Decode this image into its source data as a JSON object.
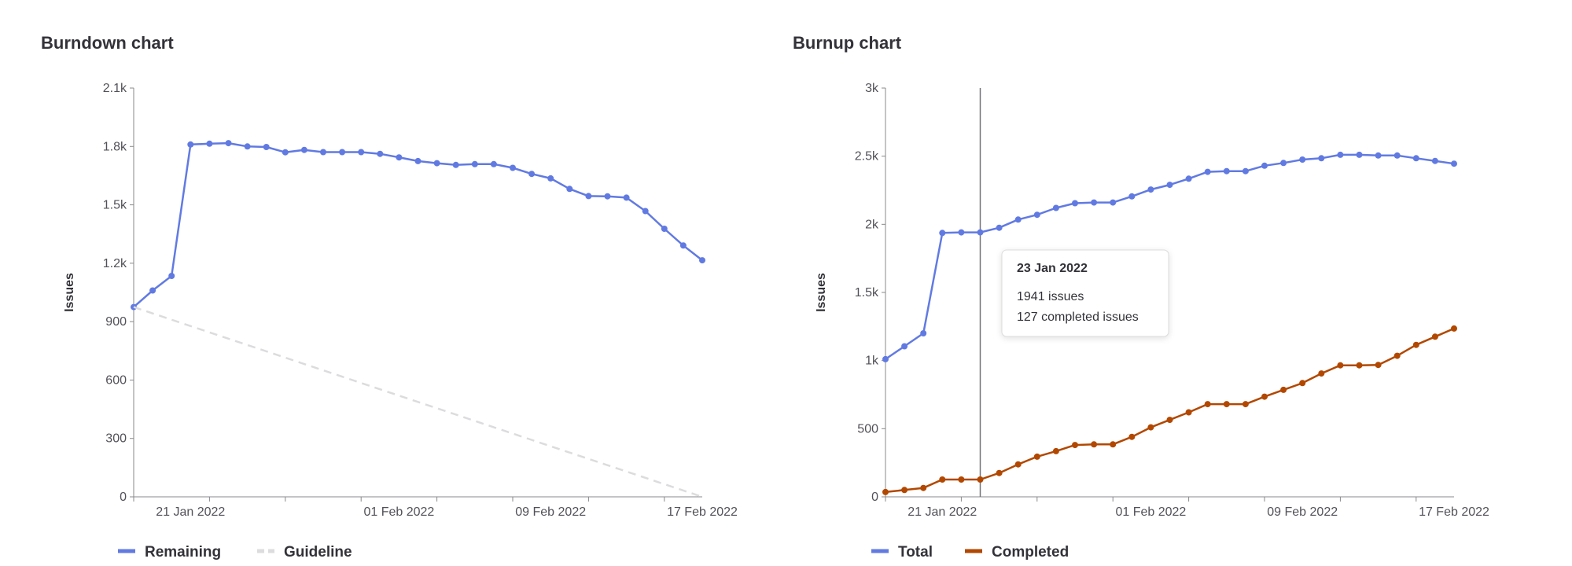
{
  "colors": {
    "total": "#617ae2",
    "completed": "#b24800",
    "guideline": "#dcdcde",
    "axis": "#89888d",
    "crosshair": "#737278"
  },
  "chart_data": [
    {
      "type": "line",
      "title": "Burndown chart",
      "ylabel": "Issues",
      "xlabel": "",
      "x_ticks": [
        "21 Jan 2022",
        "01 Feb 2022",
        "09 Feb 2022",
        "17 Feb 2022"
      ],
      "y_ticks": [
        "0",
        "300",
        "600",
        "900",
        "1.2k",
        "1.5k",
        "1.8k",
        "2.1k"
      ],
      "ylim": [
        0,
        2100
      ],
      "x_range": [
        "18 Jan 2022",
        "17 Feb 2022"
      ],
      "grid": false,
      "legend": {
        "placement": "bottom-left",
        "entries": [
          "Remaining",
          "Guideline"
        ]
      },
      "series": [
        {
          "name": "Remaining",
          "x": [
            "18 Jan 2022",
            "19 Jan 2022",
            "20 Jan 2022",
            "21 Jan 2022",
            "22 Jan 2022",
            "23 Jan 2022",
            "24 Jan 2022",
            "25 Jan 2022",
            "26 Jan 2022",
            "27 Jan 2022",
            "28 Jan 2022",
            "29 Jan 2022",
            "30 Jan 2022",
            "31 Jan 2022",
            "01 Feb 2022",
            "02 Feb 2022",
            "03 Feb 2022",
            "04 Feb 2022",
            "05 Feb 2022",
            "06 Feb 2022",
            "07 Feb 2022",
            "08 Feb 2022",
            "09 Feb 2022",
            "10 Feb 2022",
            "11 Feb 2022",
            "12 Feb 2022",
            "13 Feb 2022",
            "14 Feb 2022",
            "15 Feb 2022",
            "16 Feb 2022",
            "17 Feb 2022"
          ],
          "values": [
            975,
            1060,
            1135,
            1810,
            1814,
            1817,
            1800,
            1797,
            1770,
            1782,
            1771,
            1771,
            1771,
            1762,
            1744,
            1725,
            1714,
            1705,
            1709,
            1709,
            1690,
            1659,
            1636,
            1582,
            1545,
            1544,
            1537,
            1468,
            1377,
            1291,
            1215
          ]
        },
        {
          "name": "Guideline",
          "x": [
            "18 Jan 2022",
            "17 Feb 2022"
          ],
          "values": [
            975,
            0
          ]
        }
      ]
    },
    {
      "type": "line",
      "title": "Burnup chart",
      "ylabel": "Issues",
      "xlabel": "",
      "x_ticks": [
        "21 Jan 2022",
        "01 Feb 2022",
        "09 Feb 2022",
        "17 Feb 2022"
      ],
      "y_ticks": [
        "0",
        "500",
        "1k",
        "1.5k",
        "2k",
        "2.5k",
        "3k"
      ],
      "ylim": [
        0,
        3000
      ],
      "x_range": [
        "18 Jan 2022",
        "17 Feb 2022"
      ],
      "grid": false,
      "legend": {
        "placement": "bottom-left",
        "entries": [
          "Total",
          "Completed"
        ]
      },
      "tooltip": {
        "date": "23 Jan 2022",
        "lines": [
          "1941 issues",
          "127 completed issues"
        ]
      },
      "series": [
        {
          "name": "Total",
          "x": [
            "18 Jan 2022",
            "19 Jan 2022",
            "20 Jan 2022",
            "21 Jan 2022",
            "22 Jan 2022",
            "23 Jan 2022",
            "24 Jan 2022",
            "25 Jan 2022",
            "26 Jan 2022",
            "27 Jan 2022",
            "28 Jan 2022",
            "29 Jan 2022",
            "30 Jan 2022",
            "31 Jan 2022",
            "01 Feb 2022",
            "02 Feb 2022",
            "03 Feb 2022",
            "04 Feb 2022",
            "05 Feb 2022",
            "06 Feb 2022",
            "07 Feb 2022",
            "08 Feb 2022",
            "09 Feb 2022",
            "10 Feb 2022",
            "11 Feb 2022",
            "12 Feb 2022",
            "13 Feb 2022",
            "14 Feb 2022",
            "15 Feb 2022",
            "16 Feb 2022",
            "17 Feb 2022"
          ],
          "values": [
            1010,
            1105,
            1200,
            1937,
            1941,
            1941,
            1975,
            2035,
            2070,
            2120,
            2155,
            2160,
            2160,
            2205,
            2255,
            2290,
            2335,
            2385,
            2390,
            2390,
            2430,
            2450,
            2475,
            2485,
            2510,
            2510,
            2505,
            2505,
            2485,
            2465,
            2445
          ]
        },
        {
          "name": "Completed",
          "x": [
            "18 Jan 2022",
            "19 Jan 2022",
            "20 Jan 2022",
            "21 Jan 2022",
            "22 Jan 2022",
            "23 Jan 2022",
            "24 Jan 2022",
            "25 Jan 2022",
            "26 Jan 2022",
            "27 Jan 2022",
            "28 Jan 2022",
            "29 Jan 2022",
            "30 Jan 2022",
            "31 Jan 2022",
            "01 Feb 2022",
            "02 Feb 2022",
            "03 Feb 2022",
            "04 Feb 2022",
            "05 Feb 2022",
            "06 Feb 2022",
            "07 Feb 2022",
            "08 Feb 2022",
            "09 Feb 2022",
            "10 Feb 2022",
            "11 Feb 2022",
            "12 Feb 2022",
            "13 Feb 2022",
            "14 Feb 2022",
            "15 Feb 2022",
            "16 Feb 2022",
            "17 Feb 2022"
          ],
          "values": [
            35,
            50,
            65,
            127,
            127,
            127,
            175,
            238,
            295,
            335,
            380,
            385,
            385,
            440,
            510,
            565,
            620,
            680,
            680,
            680,
            735,
            785,
            835,
            905,
            965,
            965,
            968,
            1035,
            1115,
            1175,
            1235
          ]
        }
      ]
    }
  ]
}
